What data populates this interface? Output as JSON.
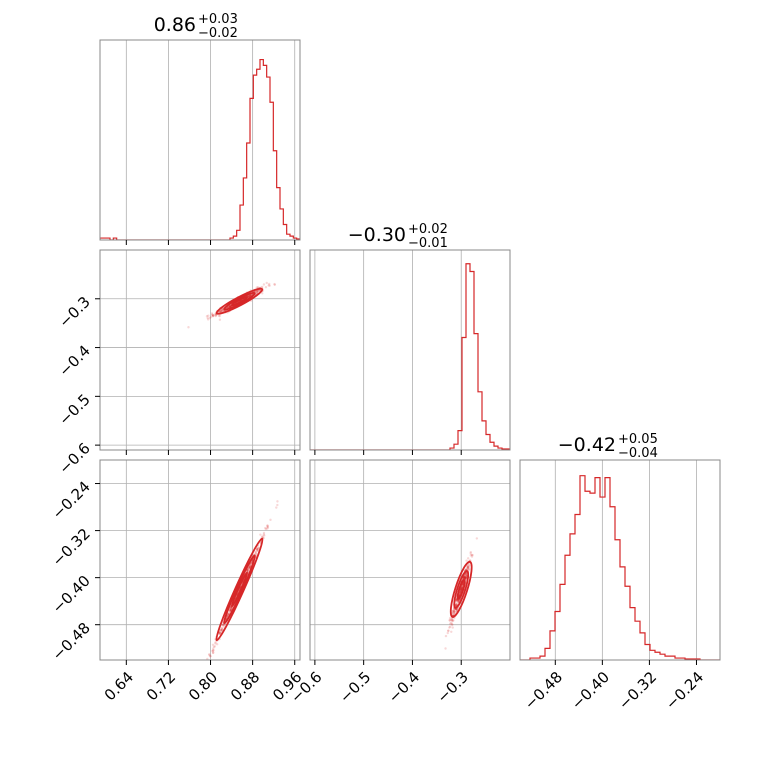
{
  "chart_data": {
    "type": "corner",
    "color": "#d62728",
    "grid": true,
    "parameters": [
      {
        "median": "0.86",
        "plus": "+0.03",
        "minus": "−0.02"
      },
      {
        "median": "−0.30",
        "plus": "+0.02",
        "minus": "−0.01"
      },
      {
        "median": "−0.42",
        "plus": "+0.05",
        "minus": "−0.04"
      }
    ],
    "axes": {
      "p0": {
        "range": [
          0.59,
          0.97
        ],
        "ticks": [
          0.64,
          0.72,
          0.8,
          0.88,
          0.96
        ],
        "tick_labels": [
          "0.64",
          "0.72",
          "0.80",
          "0.88",
          "0.96"
        ]
      },
      "p1": {
        "range": [
          -0.61,
          -0.2
        ],
        "ticks": [
          -0.6,
          -0.5,
          -0.4,
          -0.3
        ],
        "tick_labels": [
          "−0.6",
          "−0.5",
          "−0.4",
          "−0.3"
        ]
      },
      "p2": {
        "range": [
          -0.54,
          -0.2
        ],
        "ticks": [
          -0.48,
          -0.4,
          -0.32,
          -0.24
        ],
        "tick_labels": [
          "−0.48",
          "−0.40",
          "−0.32",
          "−0.24"
        ]
      }
    },
    "histograms": [
      {
        "param": "p0",
        "range": [
          0.59,
          0.97
        ],
        "counts": [
          0.01,
          0.01,
          0.01,
          0,
          0.01,
          0,
          0,
          0,
          0,
          0,
          0,
          0,
          0,
          0,
          0,
          0,
          0,
          0,
          0,
          0,
          0,
          0,
          0,
          0,
          0,
          0,
          0,
          0,
          0,
          0,
          0,
          0,
          0,
          0,
          0,
          0,
          0,
          0,
          0,
          0.01,
          0.02,
          0.05,
          0.18,
          0.32,
          0.5,
          0.73,
          0.85,
          0.88,
          0.93,
          0.9,
          0.84,
          0.71,
          0.46,
          0.27,
          0.16,
          0.08,
          0.03,
          0.02,
          0.01,
          0.005
        ]
      },
      {
        "param": "p1",
        "range": [
          -0.61,
          -0.2
        ],
        "counts": [
          0,
          0,
          0,
          0,
          0,
          0,
          0,
          0,
          0,
          0,
          0,
          0,
          0,
          0,
          0,
          0,
          0,
          0,
          0,
          0,
          0,
          0,
          0,
          0,
          0,
          0,
          0,
          0,
          0,
          0,
          0,
          0,
          0,
          0,
          0,
          0.01,
          0.03,
          0.1,
          0.58,
          0.96,
          0.92,
          0.6,
          0.3,
          0.15,
          0.08,
          0.04,
          0.02,
          0.01,
          0.005,
          0.005
        ]
      },
      {
        "param": "p2",
        "range": [
          -0.54,
          -0.2
        ],
        "counts": [
          0,
          0,
          0.01,
          0.01,
          0.02,
          0.06,
          0.15,
          0.25,
          0.39,
          0.54,
          0.65,
          0.75,
          0.95,
          0.87,
          0.86,
          0.94,
          0.84,
          0.94,
          0.79,
          0.62,
          0.48,
          0.38,
          0.27,
          0.2,
          0.14,
          0.08,
          0.05,
          0.04,
          0.03,
          0.02,
          0.02,
          0.01,
          0.01,
          0.005,
          0.005,
          0.005,
          0,
          0,
          0,
          0
        ]
      }
    ],
    "scatter_panels": [
      {
        "x": "p0",
        "y": "p1",
        "center": [
          0.855,
          -0.305
        ],
        "slope": 0.57,
        "spread": [
          0.024,
          0.004
        ]
      },
      {
        "x": "p0",
        "y": "p2",
        "center": [
          0.855,
          -0.42
        ],
        "slope": 2.0,
        "spread": [
          0.024,
          0.004
        ]
      },
      {
        "x": "p1",
        "y": "p2",
        "center": [
          -0.3,
          -0.42
        ],
        "slope": 2.6,
        "spread": [
          0.01,
          0.008
        ]
      }
    ]
  }
}
